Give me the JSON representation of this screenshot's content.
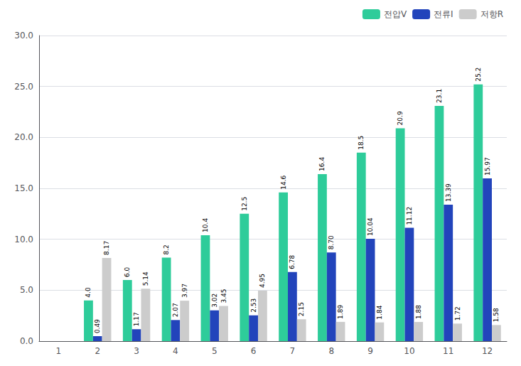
{
  "chart_data": {
    "type": "bar",
    "categories": [
      1,
      2,
      3,
      4,
      5,
      6,
      7,
      8,
      9,
      10,
      11,
      12
    ],
    "series": [
      {
        "name": "전압V",
        "color": "#2ECC9A",
        "values": [
          0,
          4.0,
          6.0,
          8.2,
          10.4,
          12.5,
          14.6,
          16.4,
          18.5,
          20.9,
          23.1,
          25.2
        ],
        "value_labels": [
          null,
          "4.0",
          "6.0",
          "8.2",
          "10.4",
          "12.5",
          "14.6",
          "16.4",
          "18.5",
          "20.9",
          "23.1",
          "25.2"
        ]
      },
      {
        "name": "전류I",
        "color": "#2244BB",
        "values": [
          0,
          0.49,
          1.17,
          2.07,
          3.02,
          2.53,
          6.78,
          8.7,
          10.04,
          11.12,
          13.39,
          15.97
        ],
        "value_labels": [
          null,
          "0.49",
          "1.17",
          "2.07",
          "3.02",
          "2.53",
          "6.78",
          "8.70",
          "10.04",
          "11.12",
          "13.39",
          "15.97"
        ]
      },
      {
        "name": "저항R",
        "color": "#CCCCCC",
        "values": [
          0,
          8.17,
          5.14,
          3.97,
          3.45,
          4.95,
          2.15,
          1.89,
          1.84,
          1.88,
          1.72,
          1.58
        ],
        "value_labels": [
          null,
          "8.17",
          "5.14",
          "3.97",
          "3.45",
          "4.95",
          "2.15",
          "1.89",
          "1.84",
          "1.88",
          "1.72",
          "1.58"
        ]
      }
    ],
    "ylim": [
      0,
      30.0
    ],
    "yticks": [
      {
        "value": 0,
        "label": "0.0"
      },
      {
        "value": 5,
        "label": "5.0"
      },
      {
        "value": 10,
        "label": "10.0"
      },
      {
        "value": 15,
        "label": "15.0"
      },
      {
        "value": 20,
        "label": "20.0"
      },
      {
        "value": 25,
        "label": "25.0"
      },
      {
        "value": 30,
        "label": "30.0"
      }
    ],
    "grid": true,
    "legend": "upper right",
    "data_labels": true
  }
}
